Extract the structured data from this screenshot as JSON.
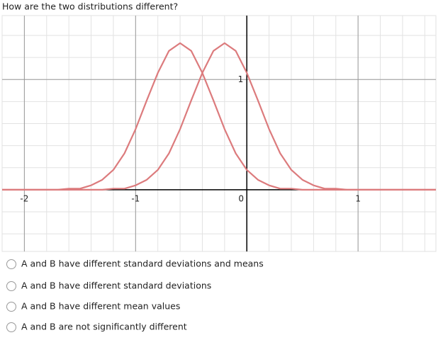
{
  "question": "How are the two distributions different?",
  "chart_data": {
    "type": "line",
    "x": [
      -2.2,
      -2.1,
      -2.0,
      -1.9,
      -1.8,
      -1.7,
      -1.6,
      -1.5,
      -1.4,
      -1.3,
      -1.2,
      -1.1,
      -1.0,
      -0.9,
      -0.8,
      -0.7,
      -0.6,
      -0.5,
      -0.4,
      -0.3,
      -0.2,
      -0.1,
      0,
      0.1,
      0.2,
      0.3,
      0.4,
      0.5,
      0.6,
      0.7,
      0.8,
      0.9,
      1.0,
      1.1,
      1.2,
      1.3,
      1.4,
      1.5,
      1.6,
      1.7
    ],
    "series": [
      {
        "color": "#dc7b7d",
        "values": [
          0,
          0,
          0,
          0,
          0,
          0,
          0.01,
          0.01,
          0.04,
          0.09,
          0.18,
          0.33,
          0.55,
          0.81,
          1.06,
          1.26,
          1.33,
          1.26,
          1.06,
          0.81,
          0.55,
          0.33,
          0.18,
          0.09,
          0.04,
          0.01,
          0.01,
          0,
          0,
          0,
          0,
          0,
          0,
          0,
          0,
          0,
          0,
          0,
          0,
          0
        ]
      },
      {
        "color": "#dc7b7d",
        "values": [
          0,
          0,
          0,
          0,
          0,
          0,
          0,
          0,
          0,
          0,
          0.01,
          0.01,
          0.04,
          0.09,
          0.18,
          0.33,
          0.55,
          0.81,
          1.06,
          1.26,
          1.33,
          1.26,
          1.06,
          0.81,
          0.55,
          0.33,
          0.18,
          0.09,
          0.04,
          0.01,
          0.01,
          0,
          0,
          0,
          0,
          0,
          0,
          0,
          0,
          0
        ]
      }
    ],
    "xlim": [
      -2.2,
      1.7
    ],
    "ylim": [
      -0.56,
      1.58
    ],
    "xticks": [
      -2,
      -1,
      0,
      1
    ],
    "yticks": [
      1
    ],
    "grid": true,
    "minor_grid_step": 0.2
  },
  "options": [
    "A and B have different standard deviations and means",
    "A and B have different standard deviations",
    "A and B have different mean values",
    "A and B are not significantly different"
  ]
}
